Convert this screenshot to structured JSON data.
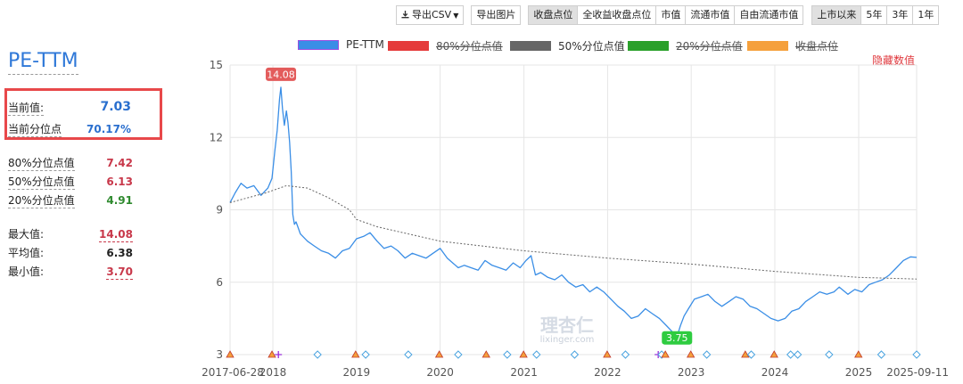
{
  "toolbar": {
    "export_csv": "导出CSV",
    "export_image": "导出图片",
    "metric_tabs": [
      "收盘点位",
      "全收益收盘点位",
      "市值",
      "流通市值",
      "自由流通市值"
    ],
    "range_tabs": [
      "上市以来",
      "5年",
      "3年",
      "1年"
    ]
  },
  "panel": {
    "title": "PE-TTM",
    "current_label": "当前值:",
    "current_value": "7.03",
    "current_pct_label": "当前分位点",
    "current_pct_value": "70.17%",
    "p80_label": "80%分位点值",
    "p80_value": "7.42",
    "p50_label": "50%分位点值",
    "p50_value": "6.13",
    "p20_label": "20%分位点值",
    "p20_value": "4.91",
    "max_label": "最大值:",
    "max_value": "14.08",
    "avg_label": "平均值:",
    "avg_value": "6.38",
    "min_label": "最小值:",
    "min_value": "3.70"
  },
  "hide_values": "隐藏数值",
  "watermark": {
    "main": "理杏仁",
    "sub": "lixinger.com"
  },
  "colors": {
    "pe": "#3a8ee6",
    "p80": "#e53b3b",
    "p50": "#666666",
    "p20": "#2aa02a",
    "close": "#f5a03c",
    "box": "#e8484a"
  },
  "chart_data": {
    "type": "line",
    "legend": [
      {
        "name": "PE-TTM",
        "color": "#3a8ee6",
        "active": true
      },
      {
        "name": "80%分位点值",
        "color": "#e53b3b",
        "active": false
      },
      {
        "name": "50%分位点值",
        "color": "#666666",
        "active": true
      },
      {
        "name": "20%分位点值",
        "color": "#2aa02a",
        "active": false
      },
      {
        "name": "收盘点位",
        "color": "#f5a03c",
        "active": false
      }
    ],
    "ylim": [
      3,
      15
    ],
    "y_ticks": [
      3,
      6,
      9,
      12,
      15
    ],
    "xlim": [
      "2017-06-28",
      "2025-09-11"
    ],
    "x_ticks": [
      "2017-06-28",
      "2018",
      "2019",
      "2020",
      "2021",
      "2022",
      "2023",
      "2024",
      "2025",
      "2025-09-11"
    ],
    "grid": true,
    "series": [
      {
        "name": "PE-TTM",
        "x": [
          "2017-06-28",
          "2017-07-20",
          "2017-08-15",
          "2017-09-10",
          "2017-10-10",
          "2017-11-10",
          "2017-12-10",
          "2017-12-28",
          "2018-01-10",
          "2018-01-20",
          "2018-01-30",
          "2018-02-05",
          "2018-02-12",
          "2018-02-20",
          "2018-03-01",
          "2018-03-08",
          "2018-03-15",
          "2018-03-22",
          "2018-03-29",
          "2018-04-05",
          "2018-04-12",
          "2018-04-20",
          "2018-05-01",
          "2018-06-01",
          "2018-07-01",
          "2018-08-01",
          "2018-09-01",
          "2018-10-01",
          "2018-11-01",
          "2018-12-01",
          "2019-01-01",
          "2019-02-01",
          "2019-03-01",
          "2019-04-01",
          "2019-05-01",
          "2019-06-01",
          "2019-07-01",
          "2019-08-01",
          "2019-09-01",
          "2019-10-01",
          "2019-11-01",
          "2019-12-01",
          "2020-01-01",
          "2020-02-01",
          "2020-03-20",
          "2020-04-15",
          "2020-05-15",
          "2020-06-15",
          "2020-07-15",
          "2020-08-15",
          "2020-09-15",
          "2020-10-15",
          "2020-11-15",
          "2020-12-15",
          "2021-01-10",
          "2021-02-01",
          "2021-02-20",
          "2021-03-15",
          "2021-04-15",
          "2021-05-15",
          "2021-06-15",
          "2021-07-15",
          "2021-08-15",
          "2021-09-15",
          "2021-10-15",
          "2021-11-15",
          "2021-12-15",
          "2022-01-15",
          "2022-02-15",
          "2022-03-15",
          "2022-04-15",
          "2022-05-15",
          "2022-06-15",
          "2022-07-15",
          "2022-08-15",
          "2022-09-15",
          "2022-10-15",
          "2022-10-31",
          "2022-11-15",
          "2022-12-01",
          "2022-12-20",
          "2023-01-15",
          "2023-02-15",
          "2023-03-15",
          "2023-04-15",
          "2023-05-15",
          "2023-06-15",
          "2023-07-15",
          "2023-08-15",
          "2023-09-15",
          "2023-10-15",
          "2023-11-15",
          "2023-12-15",
          "2024-01-15",
          "2024-02-15",
          "2024-03-15",
          "2024-04-15",
          "2024-05-15",
          "2024-06-15",
          "2024-07-15",
          "2024-08-15",
          "2024-09-15",
          "2024-10-08",
          "2024-11-15",
          "2024-12-15",
          "2025-01-15",
          "2025-02-15",
          "2025-03-15",
          "2025-04-15",
          "2025-05-15",
          "2025-06-15",
          "2025-07-15",
          "2025-08-15",
          "2025-09-11"
        ],
        "values": [
          9.3,
          9.7,
          10.1,
          9.9,
          10.0,
          9.6,
          9.9,
          10.3,
          11.5,
          12.3,
          13.6,
          14.08,
          13.2,
          12.5,
          13.1,
          12.6,
          11.8,
          10.6,
          8.8,
          8.4,
          8.5,
          8.3,
          8.0,
          7.7,
          7.5,
          7.3,
          7.2,
          7.0,
          7.3,
          7.4,
          7.8,
          7.9,
          8.05,
          7.7,
          7.4,
          7.5,
          7.3,
          7.0,
          7.2,
          7.1,
          7.0,
          7.2,
          7.4,
          7.0,
          6.6,
          6.7,
          6.6,
          6.5,
          6.9,
          6.7,
          6.6,
          6.5,
          6.8,
          6.6,
          6.9,
          7.1,
          6.3,
          6.4,
          6.2,
          6.1,
          6.3,
          6.0,
          5.8,
          5.9,
          5.6,
          5.8,
          5.6,
          5.3,
          5.0,
          4.8,
          4.5,
          4.6,
          4.9,
          4.7,
          4.5,
          4.2,
          3.9,
          3.75,
          4.2,
          4.6,
          4.9,
          5.3,
          5.4,
          5.5,
          5.2,
          5.0,
          5.2,
          5.4,
          5.3,
          5.0,
          4.9,
          4.7,
          4.5,
          4.4,
          4.5,
          4.8,
          4.9,
          5.2,
          5.4,
          5.6,
          5.5,
          5.6,
          5.8,
          5.5,
          5.7,
          5.6,
          5.9,
          6.0,
          6.1,
          6.3,
          6.6,
          6.9,
          7.05,
          7.03
        ]
      },
      {
        "name": "50%分位点值",
        "x": [
          "2017-06-28",
          "2017-12-01",
          "2018-03-01",
          "2018-06-01",
          "2018-09-01",
          "2018-12-01",
          "2019-01-01",
          "2019-04-01",
          "2020-01-01",
          "2021-01-01",
          "2022-01-01",
          "2023-01-01",
          "2024-01-01",
          "2025-01-01",
          "2025-09-11"
        ],
        "values": [
          9.3,
          9.7,
          10.0,
          9.9,
          9.5,
          9.0,
          8.6,
          8.3,
          7.7,
          7.3,
          7.0,
          6.75,
          6.45,
          6.2,
          6.13
        ]
      }
    ],
    "annotations": [
      {
        "text": "14.08",
        "x": "2018-02-05",
        "y": 14.08,
        "color": "#e35b5b"
      },
      {
        "text": "3.75",
        "x": "2022-10-31",
        "y": 3.75,
        "color": "#2ecc40"
      }
    ],
    "event_markers": [
      {
        "x": "2017-06-28",
        "shape": "triangle"
      },
      {
        "x": "2017-12-28",
        "shape": "triangle"
      },
      {
        "x": "2018-01-25",
        "shape": "plus"
      },
      {
        "x": "2018-07-15",
        "shape": "diamond"
      },
      {
        "x": "2018-12-28",
        "shape": "triangle"
      },
      {
        "x": "2019-02-10",
        "shape": "diamond"
      },
      {
        "x": "2019-08-15",
        "shape": "diamond"
      },
      {
        "x": "2019-12-28",
        "shape": "triangle"
      },
      {
        "x": "2020-03-20",
        "shape": "diamond"
      },
      {
        "x": "2020-07-20",
        "shape": "triangle"
      },
      {
        "x": "2020-10-20",
        "shape": "diamond"
      },
      {
        "x": "2020-12-30",
        "shape": "triangle"
      },
      {
        "x": "2021-02-25",
        "shape": "diamond"
      },
      {
        "x": "2021-08-10",
        "shape": "diamond"
      },
      {
        "x": "2021-12-30",
        "shape": "triangle"
      },
      {
        "x": "2022-03-20",
        "shape": "diamond"
      },
      {
        "x": "2022-08-10",
        "shape": "plus"
      },
      {
        "x": "2022-08-25",
        "shape": "diamond"
      },
      {
        "x": "2022-09-10",
        "shape": "triangle"
      },
      {
        "x": "2022-12-30",
        "shape": "triangle"
      },
      {
        "x": "2023-03-10",
        "shape": "diamond"
      },
      {
        "x": "2023-08-25",
        "shape": "triangle"
      },
      {
        "x": "2023-09-20",
        "shape": "diamond"
      },
      {
        "x": "2023-12-29",
        "shape": "triangle"
      },
      {
        "x": "2024-03-10",
        "shape": "diamond"
      },
      {
        "x": "2024-04-10",
        "shape": "diamond"
      },
      {
        "x": "2024-08-25",
        "shape": "diamond"
      },
      {
        "x": "2024-12-31",
        "shape": "triangle"
      },
      {
        "x": "2025-04-10",
        "shape": "diamond"
      },
      {
        "x": "2025-09-11",
        "shape": "diamond"
      }
    ]
  }
}
